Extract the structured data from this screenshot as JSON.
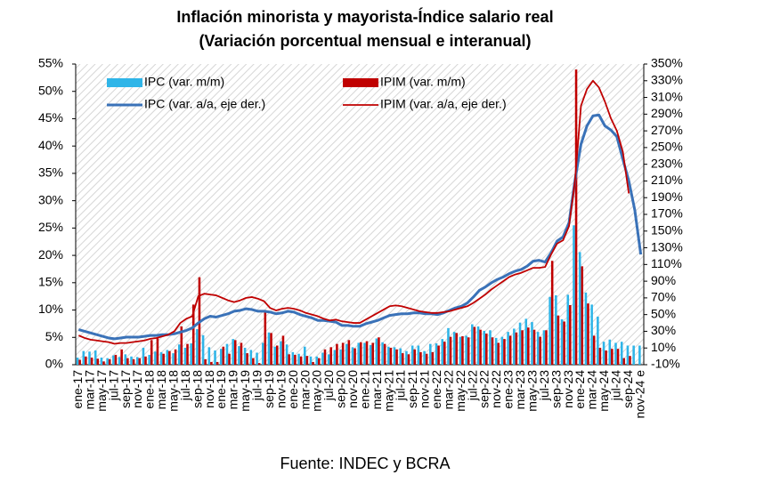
{
  "chart_data": {
    "type": "combo",
    "title": "Inflación minorista y mayorista-Índice salario real",
    "subtitle": "(Variación porcentual mensual e interanual)",
    "source": "Fuente: INDEC y BCRA",
    "categories": [
      "ene-17",
      null,
      "mar-17",
      null,
      "may-17",
      null,
      "jul-17",
      null,
      "sep-17",
      null,
      "nov-17",
      null,
      "ene-18",
      null,
      "mar-18",
      null,
      "may-18",
      null,
      "jul-18",
      null,
      "sep-18",
      null,
      "nov-18",
      null,
      "ene-19",
      null,
      "mar-19",
      null,
      "may-19",
      null,
      "jul-19",
      null,
      "sep-19",
      null,
      "nov-19",
      null,
      "ene-20",
      null,
      "mar-20",
      null,
      "may-20",
      null,
      "jul-20",
      null,
      "sep-20",
      null,
      "nov-20",
      null,
      "ene-21",
      null,
      "mar-21",
      null,
      "may-21",
      null,
      "jul-21",
      null,
      "sep-21",
      null,
      "nov-21",
      null,
      "ene-22",
      null,
      "mar-22",
      null,
      "may-22",
      null,
      "jul-22",
      null,
      "sep-22",
      null,
      "nov-22",
      null,
      "ene-23",
      null,
      "mar-23",
      null,
      "may-23",
      null,
      "jul-23",
      null,
      "sep-23",
      null,
      "nov-23",
      null,
      "ene-24",
      null,
      "mar-24",
      null,
      "may-24",
      null,
      "jul-24",
      null,
      "sep-24",
      null,
      "nov-24 e"
    ],
    "series": [
      {
        "name": "IPC (var. m/m)",
        "color": "#2fb5e8",
        "type": "bar",
        "values": [
          1.3,
          2.5,
          2.4,
          2.6,
          1.3,
          1.2,
          1.7,
          1.4,
          1.9,
          1.5,
          1.4,
          3.1,
          1.8,
          2.4,
          2.3,
          2.7,
          2.1,
          3.7,
          3.1,
          3.9,
          6.5,
          5.4,
          3.2,
          2.6,
          2.9,
          3.8,
          4.7,
          3.4,
          3.1,
          2.7,
          2.2,
          4.0,
          5.9,
          3.3,
          4.3,
          3.7,
          2.3,
          2.0,
          3.3,
          1.5,
          1.5,
          2.2,
          1.9,
          2.7,
          2.8,
          3.8,
          3.2,
          4.0,
          4.0,
          3.6,
          4.8,
          4.1,
          3.3,
          3.2,
          3.0,
          2.5,
          3.5,
          3.5,
          2.5,
          3.8,
          3.9,
          4.7,
          6.7,
          6.0,
          5.1,
          5.3,
          7.4,
          7.0,
          6.2,
          6.3,
          4.9,
          5.1,
          6.0,
          6.6,
          7.7,
          8.4,
          7.8,
          6.0,
          6.3,
          12.4,
          12.7,
          8.3,
          12.8,
          25.5,
          20.6,
          13.2,
          11.0,
          8.8,
          4.2,
          4.6,
          4.0,
          4.2,
          3.5,
          3.5,
          3.5
        ]
      },
      {
        "name": "IPIM (var. m/m)",
        "color": "#c00000",
        "type": "bar",
        "values": [
          0.9,
          1.5,
          1.3,
          1.1,
          0.6,
          1.0,
          1.8,
          2.8,
          1.2,
          1.0,
          1.2,
          1.5,
          4.5,
          4.8,
          2.0,
          2.5,
          2.8,
          7.0,
          3.8,
          11.0,
          16.0,
          1.0,
          0.5,
          0.5,
          3.3,
          2.0,
          4.5,
          4.0,
          2.1,
          1.2,
          0.3,
          10.0,
          5.8,
          3.5,
          5.3,
          1.9,
          1.8,
          1.5,
          1.6,
          0.5,
          1.2,
          2.8,
          3.2,
          3.8,
          4.0,
          4.5,
          3.0,
          4.1,
          4.3,
          4.0,
          5.0,
          3.8,
          3.1,
          2.8,
          2.1,
          1.9,
          2.8,
          2.3,
          2.0,
          2.3,
          3.5,
          4.2,
          5.1,
          5.8,
          5.2,
          5.0,
          6.9,
          6.4,
          5.7,
          5.0,
          4.0,
          4.7,
          5.3,
          5.9,
          6.3,
          6.8,
          6.4,
          5.1,
          6.3,
          19.0,
          9.0,
          7.9,
          10.9,
          54.0,
          18.0,
          11.2,
          5.3,
          3.1,
          2.6,
          2.9,
          2.9,
          1.2,
          1.6,
          null,
          null
        ]
      },
      {
        "name": "IPC (var. a/a, eje der.)",
        "color": "#3a72b8",
        "type": "line",
        "axis": "y2",
        "values": [
          32,
          30,
          28,
          26,
          24,
          22,
          21,
          22,
          23,
          23,
          23,
          24,
          25,
          25,
          26,
          26,
          27,
          29,
          31,
          34,
          40,
          45,
          48,
          47,
          49,
          51,
          54,
          55,
          57,
          56,
          54,
          54,
          53,
          51,
          52,
          54,
          53,
          50,
          48,
          46,
          43,
          43,
          42,
          41,
          37,
          37,
          36,
          36,
          39,
          41,
          43,
          46,
          49,
          50,
          51,
          51,
          52,
          52,
          51,
          51,
          50,
          52,
          55,
          58,
          60,
          64,
          71,
          79,
          83,
          88,
          92,
          95,
          99,
          102,
          104,
          108,
          114,
          115,
          113,
          124,
          138,
          143,
          160,
          211,
          254,
          276,
          288,
          289,
          276,
          271,
          263,
          236,
          210,
          175,
          122
        ]
      },
      {
        "name": "IPIM (var. a/a, eje der.)",
        "color": "#c00000",
        "type": "line",
        "axis": "y2",
        "values": [
          25,
          22,
          20,
          19,
          18,
          17,
          15,
          16,
          16,
          17,
          18,
          19,
          21,
          22,
          24,
          26,
          30,
          40,
          45,
          48,
          72,
          75,
          74,
          73,
          70,
          67,
          65,
          67,
          70,
          71,
          69,
          66,
          58,
          55,
          57,
          58,
          57,
          55,
          52,
          50,
          48,
          45,
          43,
          44,
          42,
          41,
          40,
          40,
          44,
          48,
          52,
          56,
          60,
          61,
          60,
          58,
          56,
          54,
          53,
          52,
          52,
          53,
          54,
          56,
          58,
          60,
          64,
          69,
          74,
          80,
          85,
          90,
          95,
          98,
          100,
          103,
          106,
          106,
          107,
          122,
          135,
          139,
          156,
          210,
          300,
          320,
          330,
          322,
          305,
          285,
          270,
          245,
          195,
          null,
          null
        ]
      }
    ],
    "ylim": [
      0,
      55
    ],
    "yticks": [
      {
        "value": 0,
        "label": "0%"
      },
      {
        "value": 5,
        "label": "5%"
      },
      {
        "value": 10,
        "label": "10%"
      },
      {
        "value": 15,
        "label": "15%"
      },
      {
        "value": 20,
        "label": "20%"
      },
      {
        "value": 25,
        "label": "25%"
      },
      {
        "value": 30,
        "label": "30%"
      },
      {
        "value": 35,
        "label": "35%"
      },
      {
        "value": 40,
        "label": "40%"
      },
      {
        "value": 45,
        "label": "45%"
      },
      {
        "value": 50,
        "label": "50%"
      },
      {
        "value": 55,
        "label": "55%"
      }
    ],
    "y2lim": [
      -10,
      350
    ],
    "y2ticks": [
      {
        "value": -10,
        "label": "-10%"
      },
      {
        "value": 10,
        "label": "10%"
      },
      {
        "value": 30,
        "label": "30%"
      },
      {
        "value": 50,
        "label": "50%"
      },
      {
        "value": 70,
        "label": "70%"
      },
      {
        "value": 90,
        "label": "90%"
      },
      {
        "value": 110,
        "label": "110%"
      },
      {
        "value": 130,
        "label": "130%"
      },
      {
        "value": 150,
        "label": "150%"
      },
      {
        "value": 170,
        "label": "170%"
      },
      {
        "value": 190,
        "label": "190%"
      },
      {
        "value": 210,
        "label": "210%"
      },
      {
        "value": 230,
        "label": "230%"
      },
      {
        "value": 250,
        "label": "250%"
      },
      {
        "value": 270,
        "label": "270%"
      },
      {
        "value": 290,
        "label": "290%"
      },
      {
        "value": 310,
        "label": "310%"
      },
      {
        "value": 330,
        "label": "330%"
      },
      {
        "value": 350,
        "label": "350%"
      }
    ]
  }
}
